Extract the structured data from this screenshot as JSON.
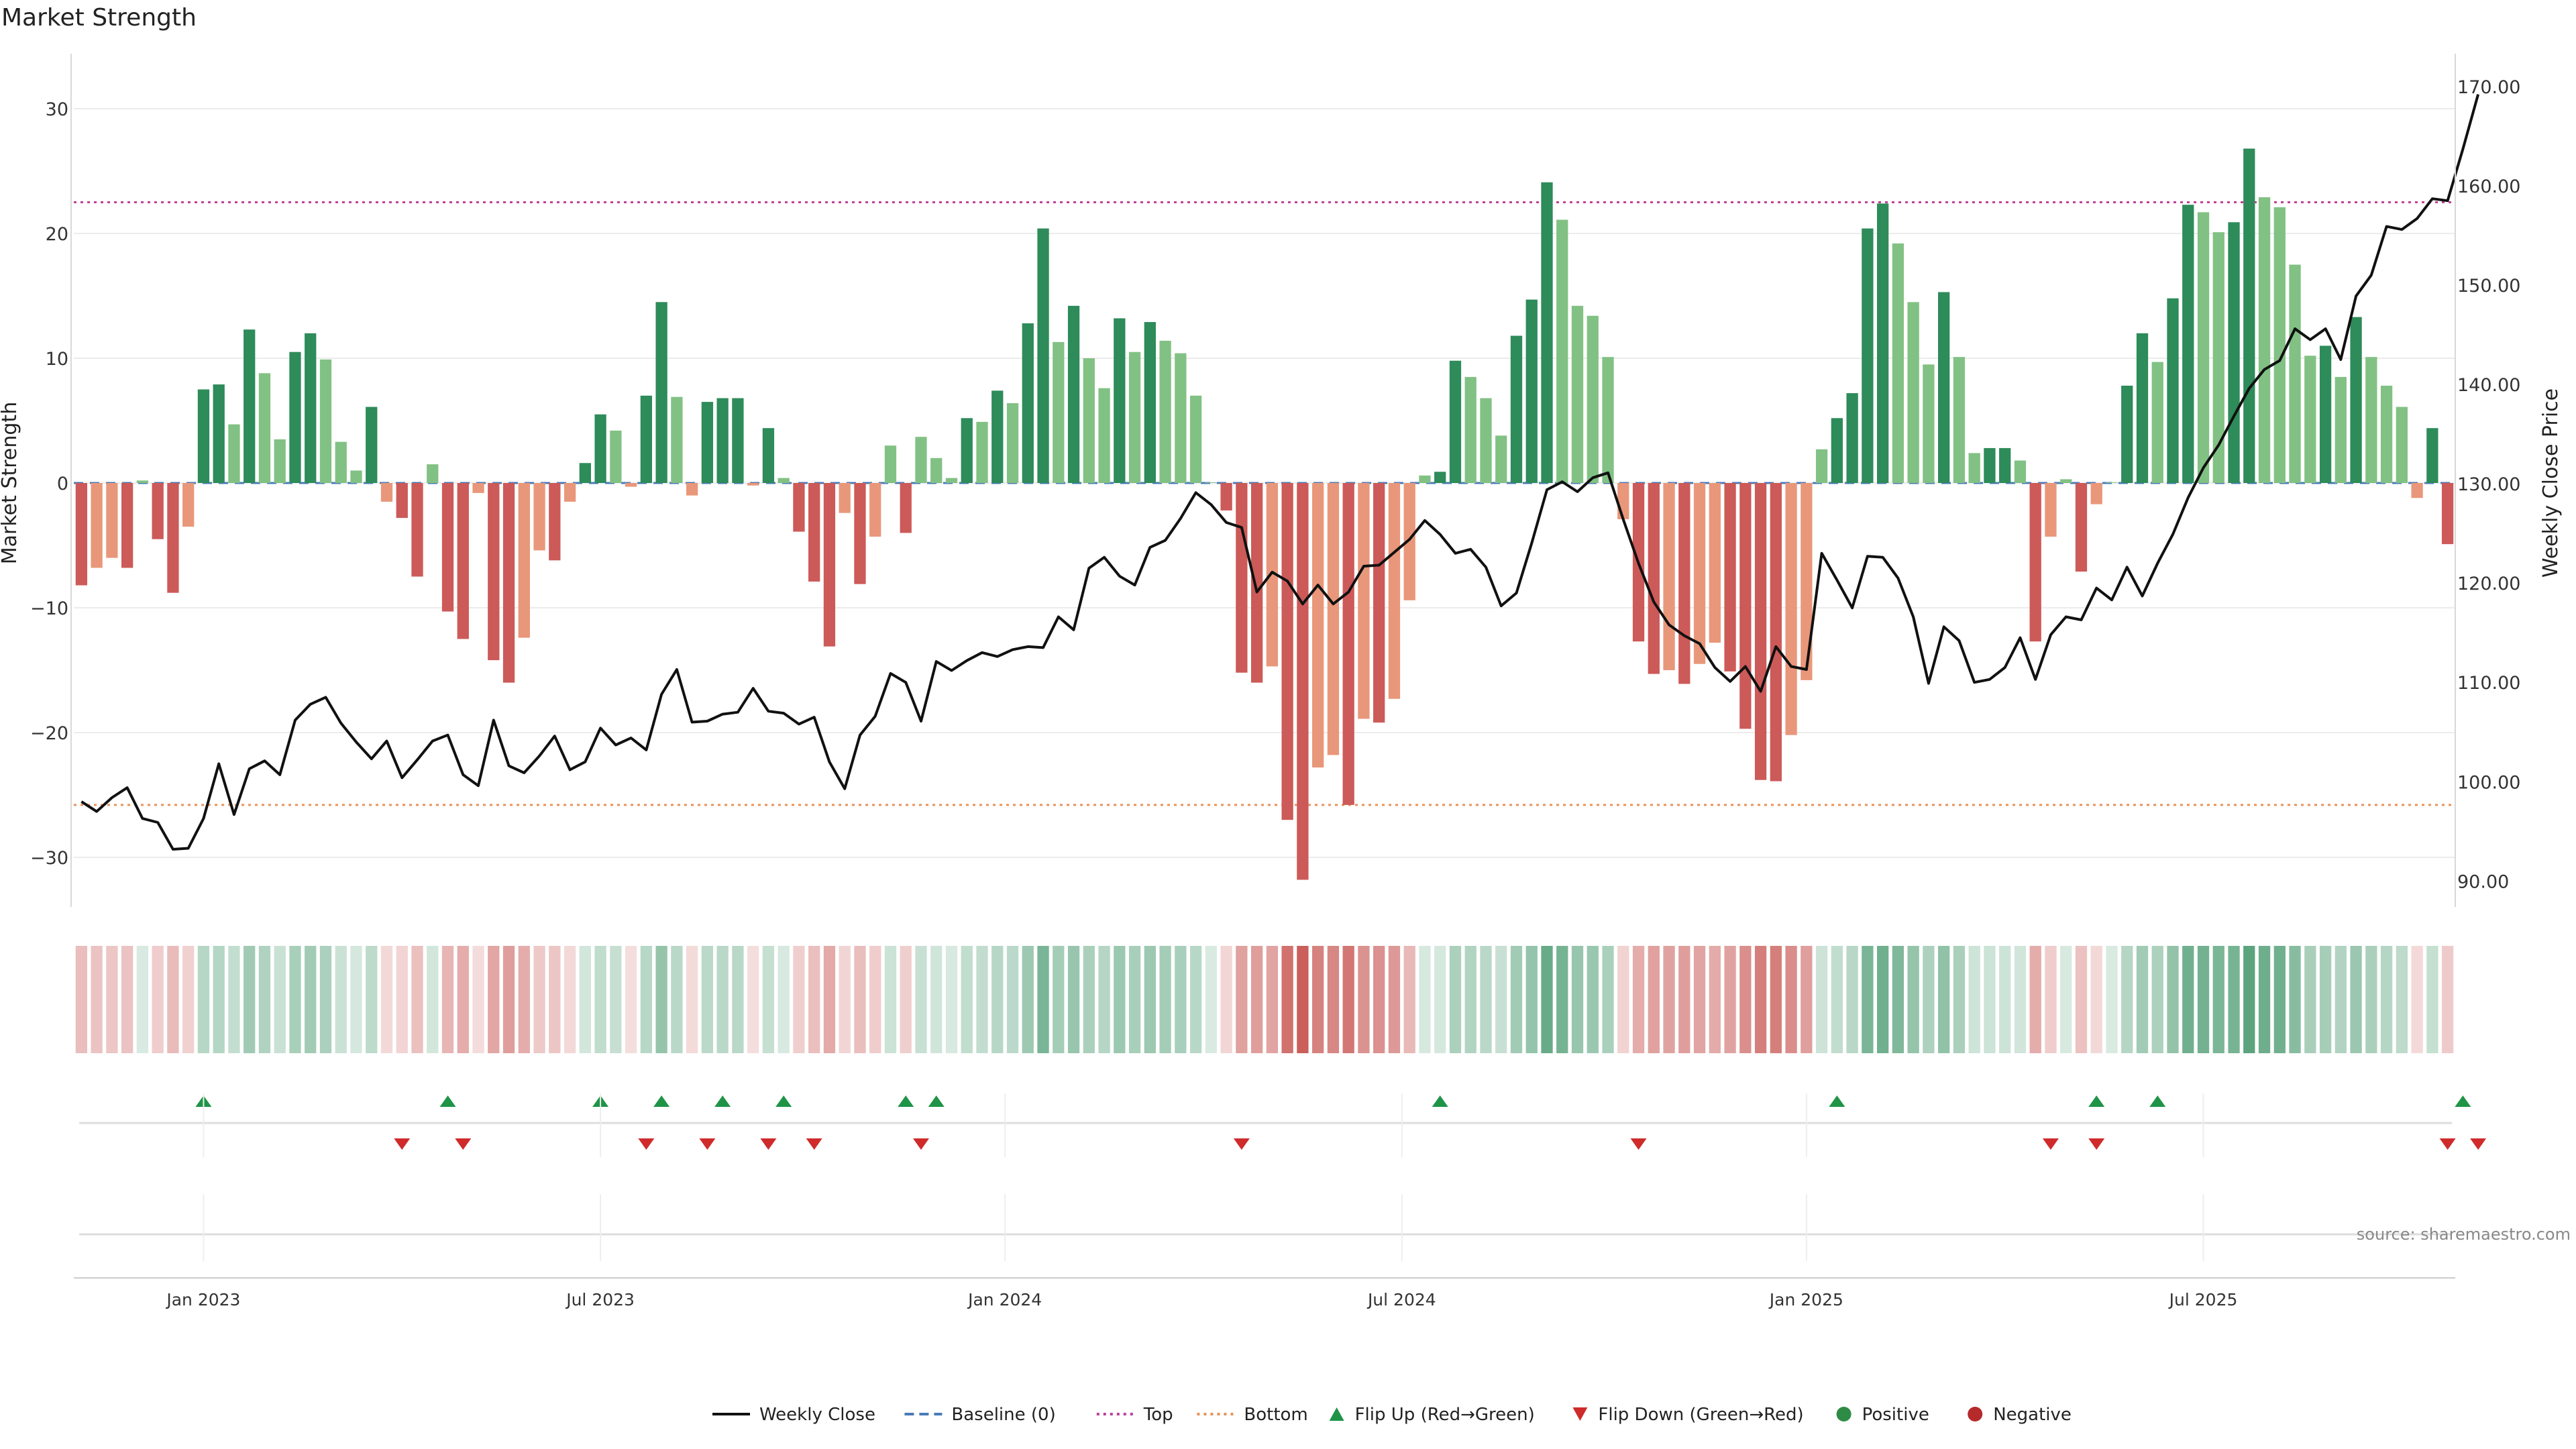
{
  "title": "Market Strength",
  "source": "source: sharemaestro.com",
  "chart_data": {
    "type": "bar",
    "title": "Market Strength",
    "ylabel": "Market Strength",
    "ylabel_right": "Weekly Close Price",
    "ylim": [
      -34.5,
      34.5
    ],
    "ylim_right": [
      88.2,
      170.6
    ],
    "yticks": [
      -30,
      -20,
      -10,
      0,
      10,
      20,
      30
    ],
    "ytick_labels": [
      "−30",
      "−20",
      "−10",
      "0",
      "10",
      "20",
      "30"
    ],
    "yticks_right": [
      90,
      100,
      110,
      120,
      130,
      140,
      150,
      160,
      170
    ],
    "ytick_labels_right": [
      "90.00",
      "100.00",
      "110.00",
      "120.00",
      "130.00",
      "140.00",
      "150.00",
      "160.00",
      "170.00"
    ],
    "top_level": 22.5,
    "bottom_level": -25.8,
    "x_ticks": [
      {
        "label": "Jan 2023",
        "week": 8.5
      },
      {
        "label": "Jul 2023",
        "week": 34.5
      },
      {
        "label": "Jan 2024",
        "week": 61
      },
      {
        "label": "Jul 2024",
        "week": 87
      },
      {
        "label": "Jan 2025",
        "week": 113.5
      },
      {
        "label": "Jul 2025",
        "week": 139.5
      }
    ],
    "strength": [
      -8.2,
      -6.8,
      -6.0,
      -6.8,
      0.2,
      -4.5,
      -8.8,
      -3.5,
      7.5,
      7.9,
      4.7,
      12.3,
      8.8,
      3.5,
      10.5,
      12.0,
      9.9,
      3.3,
      1.0,
      6.1,
      -1.5,
      -2.8,
      -7.5,
      1.5,
      -10.3,
      -12.5,
      -0.8,
      -14.2,
      -16.0,
      -12.4,
      -5.4,
      -6.2,
      -1.5,
      1.6,
      5.5,
      4.2,
      -0.3,
      7.0,
      14.5,
      6.9,
      -1.0,
      6.5,
      6.8,
      6.8,
      -0.2,
      4.4,
      0.4,
      -3.9,
      -7.9,
      -13.1,
      -2.4,
      -8.1,
      -4.3,
      3.0,
      -4.0,
      3.7,
      2.0,
      0.4,
      5.2,
      4.9,
      7.4,
      6.4,
      12.8,
      20.4,
      11.3,
      14.2,
      10.0,
      7.6,
      13.2,
      10.5,
      12.9,
      11.4,
      10.4,
      7.0,
      0.0,
      -2.2,
      -15.2,
      -16.0,
      -14.7,
      -27.0,
      -31.8,
      -22.8,
      -21.8,
      -25.8,
      -18.9,
      -19.2,
      -17.3,
      -9.4,
      0.6,
      0.9,
      9.8,
      8.5,
      6.8,
      3.8,
      11.8,
      14.7,
      24.1,
      21.1,
      14.2,
      13.4,
      10.1,
      -2.9,
      -12.7,
      -15.3,
      -15.0,
      -16.1,
      -14.5,
      -12.8,
      -15.1,
      -19.7,
      -23.8,
      -23.9,
      -20.2,
      -15.8,
      2.7,
      5.2,
      7.2,
      20.4,
      22.4,
      19.2,
      14.5,
      9.5,
      15.3,
      10.1,
      2.4,
      2.8,
      2.8,
      1.8,
      -12.7,
      -4.3,
      0.3,
      -7.1,
      -1.7,
      0.0,
      7.8,
      12.0,
      9.7,
      14.8,
      22.3,
      21.7,
      20.1,
      20.9,
      26.8,
      22.9,
      22.1,
      17.5,
      10.2,
      11.0,
      8.5,
      13.3,
      10.1,
      7.8,
      6.1,
      -1.2,
      4.4,
      -4.9
    ],
    "weekly_close": [
      98.0,
      97.0,
      98.4,
      99.4,
      96.3,
      95.9,
      93.2,
      93.3,
      96.3,
      101.8,
      96.7,
      101.3,
      102.1,
      100.7,
      106.2,
      107.8,
      108.5,
      105.9,
      104.0,
      102.3,
      104.1,
      100.4,
      102.2,
      104.1,
      104.7,
      100.7,
      99.6,
      106.2,
      101.6,
      100.9,
      102.6,
      104.6,
      101.2,
      102.0,
      105.4,
      103.7,
      104.4,
      103.2,
      108.8,
      111.3,
      106.0,
      106.1,
      106.8,
      107.0,
      109.4,
      107.1,
      106.9,
      105.8,
      106.5,
      102.0,
      99.3,
      104.7,
      106.6,
      110.9,
      110.0,
      106.1,
      112.1,
      111.2,
      112.2,
      113.0,
      112.6,
      113.3,
      113.6,
      113.5,
      116.6,
      115.3,
      121.5,
      122.6,
      120.7,
      119.8,
      123.6,
      124.3,
      126.5,
      129.1,
      127.9,
      126.1,
      125.6,
      119.1,
      121.1,
      120.2,
      117.9,
      119.8,
      117.9,
      119.1,
      121.7,
      121.8,
      123.1,
      124.4,
      126.3,
      124.9,
      123.0,
      123.4,
      121.6,
      117.7,
      119.0,
      124.0,
      129.4,
      130.2,
      129.2,
      130.6,
      131.1,
      126.4,
      122.0,
      118.1,
      115.8,
      114.7,
      113.9,
      111.5,
      110.1,
      111.6,
      109.1,
      113.6,
      111.6,
      111.3,
      123.0,
      120.3,
      117.5,
      122.7,
      122.6,
      120.5,
      116.6,
      109.9,
      115.6,
      114.2,
      110.0,
      110.3,
      111.5,
      114.5,
      110.3,
      114.8,
      116.6,
      116.3,
      119.5,
      118.3,
      121.6,
      118.7,
      122.0,
      124.9,
      128.6,
      131.6,
      133.9,
      136.8,
      139.6,
      141.5,
      142.4,
      145.6,
      144.5,
      145.6,
      142.5,
      148.9,
      151.0,
      155.9,
      155.6,
      156.7,
      158.7,
      158.5,
      163.7,
      169.2
    ],
    "flip_up_weeks": [
      8,
      24,
      34,
      38,
      42,
      46,
      54,
      56,
      89,
      115,
      132,
      136,
      156
    ],
    "flip_down_weeks": [
      21,
      25,
      37,
      41,
      45,
      48,
      55,
      76,
      102,
      129,
      132,
      155,
      157
    ],
    "legend": [
      {
        "label": "Weekly Close",
        "kind": "line",
        "color": "#111111"
      },
      {
        "label": "Baseline (0)",
        "kind": "dashed",
        "color": "#4a7bb7"
      },
      {
        "label": "Top",
        "kind": "dotted",
        "color": "#c0409a"
      },
      {
        "label": "Bottom",
        "kind": "dotted",
        "color": "#e8935a"
      },
      {
        "label": "Flip Up (Red→Green)",
        "kind": "triangle-up",
        "color": "#1f9447"
      },
      {
        "label": "Flip Down (Green→Red)",
        "kind": "triangle-down",
        "color": "#cf2b2b"
      },
      {
        "label": "Positive",
        "kind": "dot",
        "color": "#2e8b45"
      },
      {
        "label": "Negative",
        "kind": "dot",
        "color": "#b52a2a"
      }
    ],
    "colors": {
      "pos_dark": "#2e8b5a",
      "pos_light": "#82c184",
      "neg_dark": "#cc5a58",
      "neg_light": "#e9977a",
      "line": "#111111",
      "top": "#c0409a",
      "bottom": "#e8935a",
      "baseline": "#4a7bb7",
      "flip_up": "#1f9447",
      "flip_down": "#cf2b2b"
    }
  }
}
